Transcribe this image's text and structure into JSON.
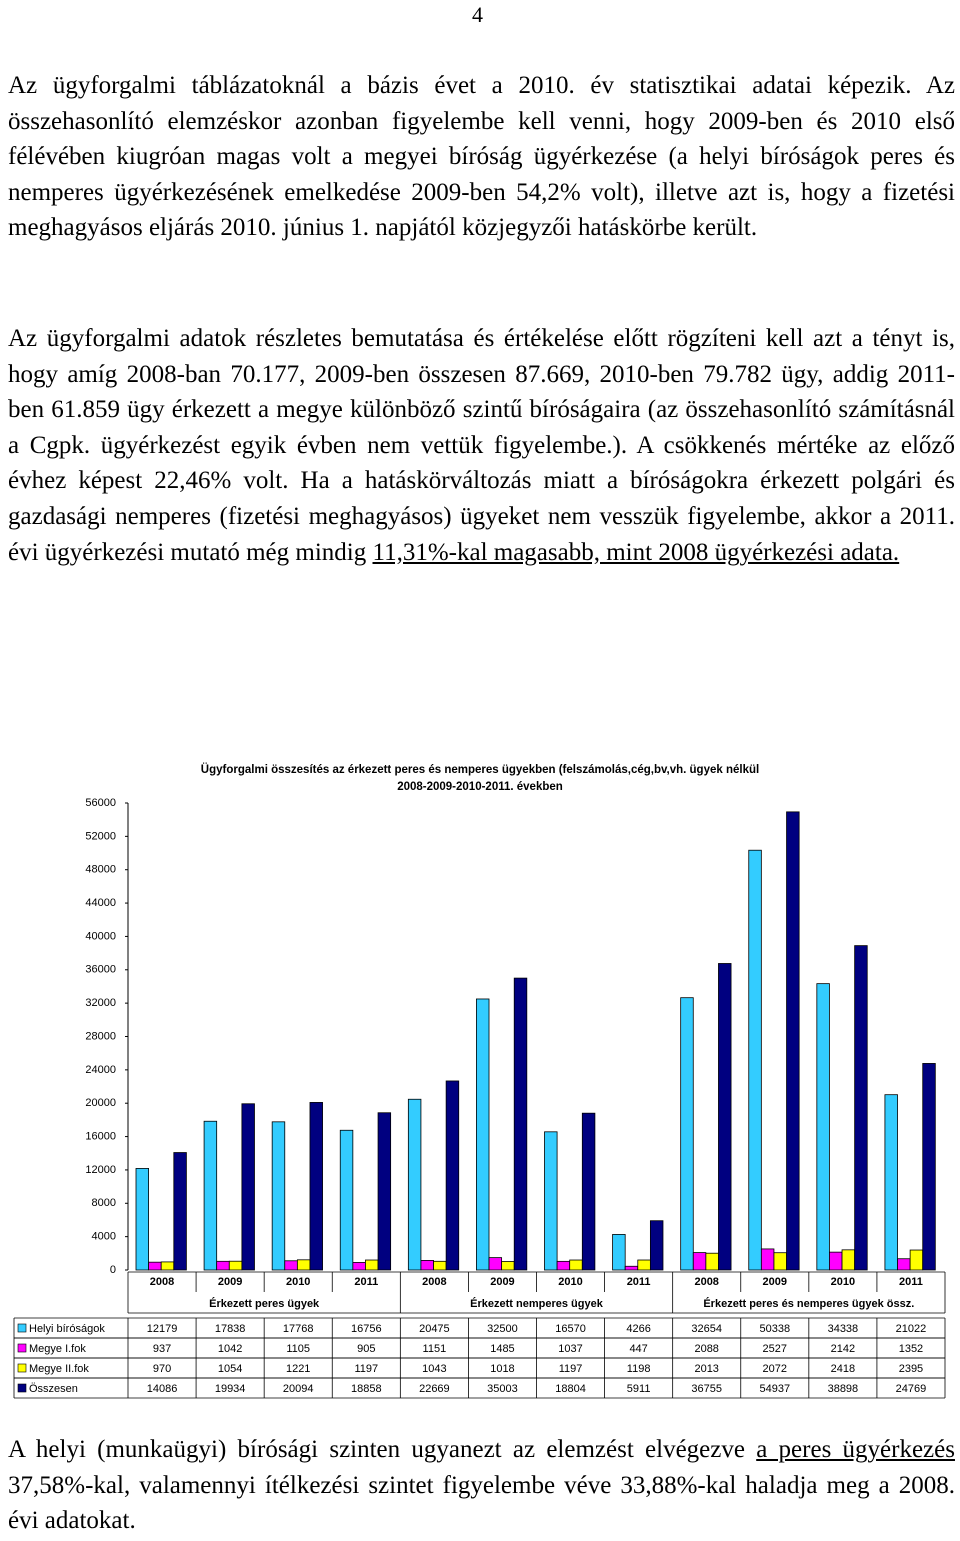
{
  "page_number": "4",
  "paragraphs": [
    [
      {
        "text": "Az ügyforgalmi táblázatoknál a bázis évet a 2010. év statisztikai adatai képezik. Az összehasonlító elemzéskor azonban figyelembe kell venni, hogy 2009-ben és 2010 első félévében kiugróan magas volt a megyei bíróság ügyérkezése (a helyi bíróságok peres és nemperes ügyérkezésének emelkedése 2009-ben 54,2% volt), illetve azt is, hogy a fizetési meghagyásos eljárás 2010. június 1. napjától közjegyzői hatáskörbe került."
      }
    ],
    [
      {
        "text": "Az ügyforgalmi adatok részletes bemutatása és értékelése előtt rögzíteni kell azt a tényt is, hogy amíg 2008-ban 70.177, 2009-ben összesen 87.669, 2010-ben 79.782 ügy, addig 2011-ben 61.859 ügy érkezett a megye különböző szintű bíróságaira (az összehasonlító számításnál a Cgpk. ügyérkezést egyik évben nem vettük figyelembe.). A csökkenés mértéke az előző évhez képest 22,46% volt. Ha a hatáskörváltozás miatt a bíróságokra érkezett polgári és gazdasági nemperes (fizetési meghagyásos) ügyeket nem vesszük figyelembe, akkor a 2011. évi ügyérkezési mutató még mindig "
      },
      {
        "text": "11,31%-kal magasabb, mint 2008 ügyérkezési adata.",
        "underline": true
      }
    ]
  ],
  "chart_data": {
    "type": "bar",
    "title": "Ügyforgalmi összesítés az érkezett peres és nemperes ügyekben (felszámolás,cég,bv,vh. ügyek nélkül",
    "subtitle": "2008-2009-2010-2011. években",
    "categories": [
      "2008",
      "2009",
      "2010",
      "2011",
      "2008",
      "2009",
      "2010",
      "2011",
      "2008",
      "2009",
      "2010",
      "2011"
    ],
    "groups": [
      "Érkezett peres ügyek",
      "Érkezett nemperes ügyek",
      "Érkezett peres és nemperes ügyek össz."
    ],
    "series": [
      {
        "name": "Helyi bíróságok",
        "color": "#33ccff",
        "values": [
          12179,
          17838,
          17768,
          16756,
          20475,
          32500,
          16570,
          4266,
          32654,
          50338,
          34338,
          21022
        ]
      },
      {
        "name": "Megye I.fok",
        "color": "#ff00ff",
        "values": [
          937,
          1042,
          1105,
          905,
          1151,
          1485,
          1037,
          447,
          2088,
          2527,
          2142,
          1352
        ]
      },
      {
        "name": "Megye II.fok",
        "color": "#ffff00",
        "values": [
          970,
          1054,
          1221,
          1197,
          1043,
          1018,
          1197,
          1198,
          2013,
          2072,
          2418,
          2395
        ]
      },
      {
        "name": "Összesen",
        "color": "#000080",
        "values": [
          14086,
          19934,
          20094,
          18858,
          22669,
          35003,
          18804,
          5911,
          36755,
          54937,
          38898,
          24769
        ]
      }
    ],
    "ylim": [
      0,
      56000
    ],
    "yticks": [
      0,
      4000,
      8000,
      12000,
      16000,
      20000,
      24000,
      28000,
      32000,
      36000,
      40000,
      44000,
      48000,
      52000,
      56000
    ]
  },
  "closing": [
    {
      "text": "A helyi (munkaügyi) bírósági szinten ugyanezt az elemzést elvégezve "
    },
    {
      "text": "a peres ügyérkezés ",
      "underline": true
    },
    {
      "text": "37,58%-kal, valamennyi ítélkezési szintet figyelembe véve 33,88%-kal haladja meg a 2008. évi adatokat."
    }
  ]
}
